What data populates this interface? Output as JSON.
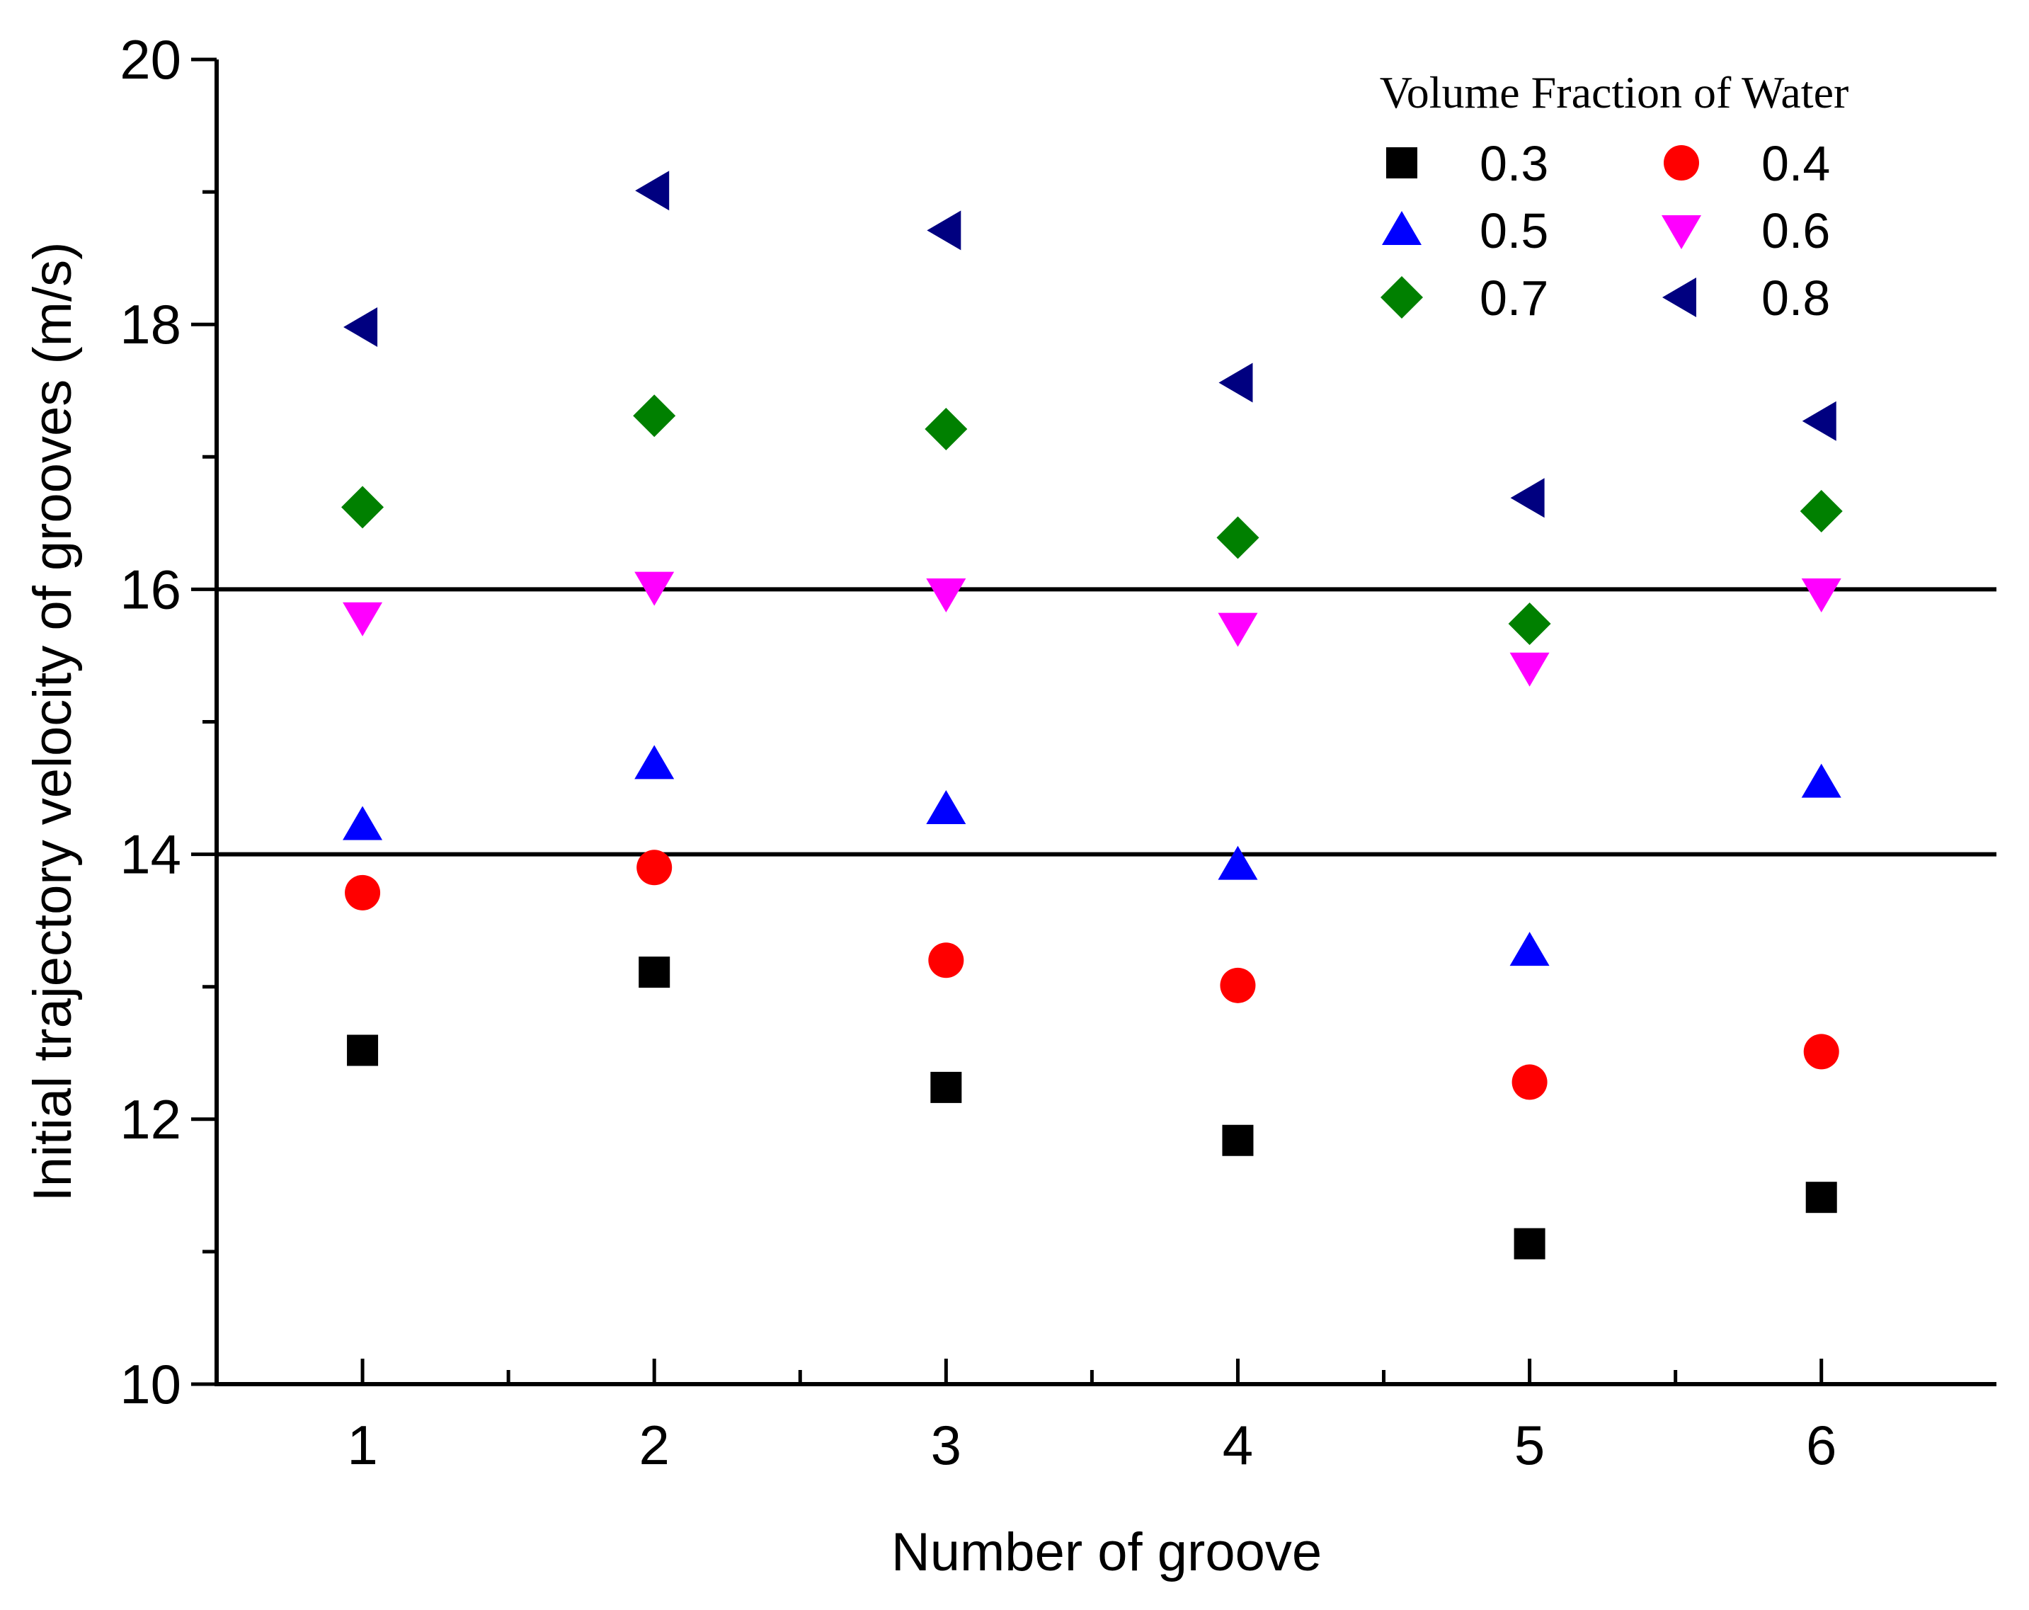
{
  "chart_data": {
    "type": "scatter",
    "title": "",
    "xlabel": "Number of groove",
    "ylabel": "Initial trajectory velocity of grooves (m/s)",
    "xlim": [
      0.5,
      6.6
    ],
    "ylim": [
      10,
      20
    ],
    "x_ticks": [
      1,
      2,
      3,
      4,
      5,
      6
    ],
    "x_minor_ticks": [
      1.5,
      2.5,
      3.5,
      4.5,
      5.5
    ],
    "y_ticks": [
      10,
      12,
      14,
      16,
      18,
      20
    ],
    "y_minor_ticks": [
      11,
      13,
      15,
      17,
      19
    ],
    "reference_lines": [
      14,
      16
    ],
    "grid": false,
    "legend": {
      "title": "Volume Fraction of Water",
      "placement": "top-right",
      "columns": 2
    },
    "x": [
      1,
      2,
      3,
      4,
      5,
      6
    ],
    "series": [
      {
        "name": "0.3",
        "marker": "square",
        "color": "#000000",
        "values": [
          12.52,
          13.11,
          12.24,
          11.84,
          11.06,
          11.41
        ]
      },
      {
        "name": "0.4",
        "marker": "circle",
        "color": "#ff0000",
        "values": [
          13.71,
          13.9,
          13.2,
          13.01,
          12.28,
          12.51
        ]
      },
      {
        "name": "0.5",
        "marker": "triangle-up",
        "color": "#0000ff",
        "values": [
          14.22,
          14.68,
          14.34,
          13.92,
          13.27,
          14.54
        ]
      },
      {
        "name": "0.6",
        "marker": "triangle-down",
        "color": "#ff00ff",
        "values": [
          15.79,
          16.02,
          15.97,
          15.71,
          15.41,
          15.97
        ]
      },
      {
        "name": "0.7",
        "marker": "diamond",
        "color": "#008000",
        "values": [
          16.62,
          17.31,
          17.21,
          16.39,
          15.74,
          16.59
        ]
      },
      {
        "name": "0.8",
        "marker": "triangle-left",
        "color": "#000080",
        "values": [
          17.98,
          19.01,
          18.71,
          17.56,
          16.69,
          17.27
        ]
      }
    ]
  }
}
